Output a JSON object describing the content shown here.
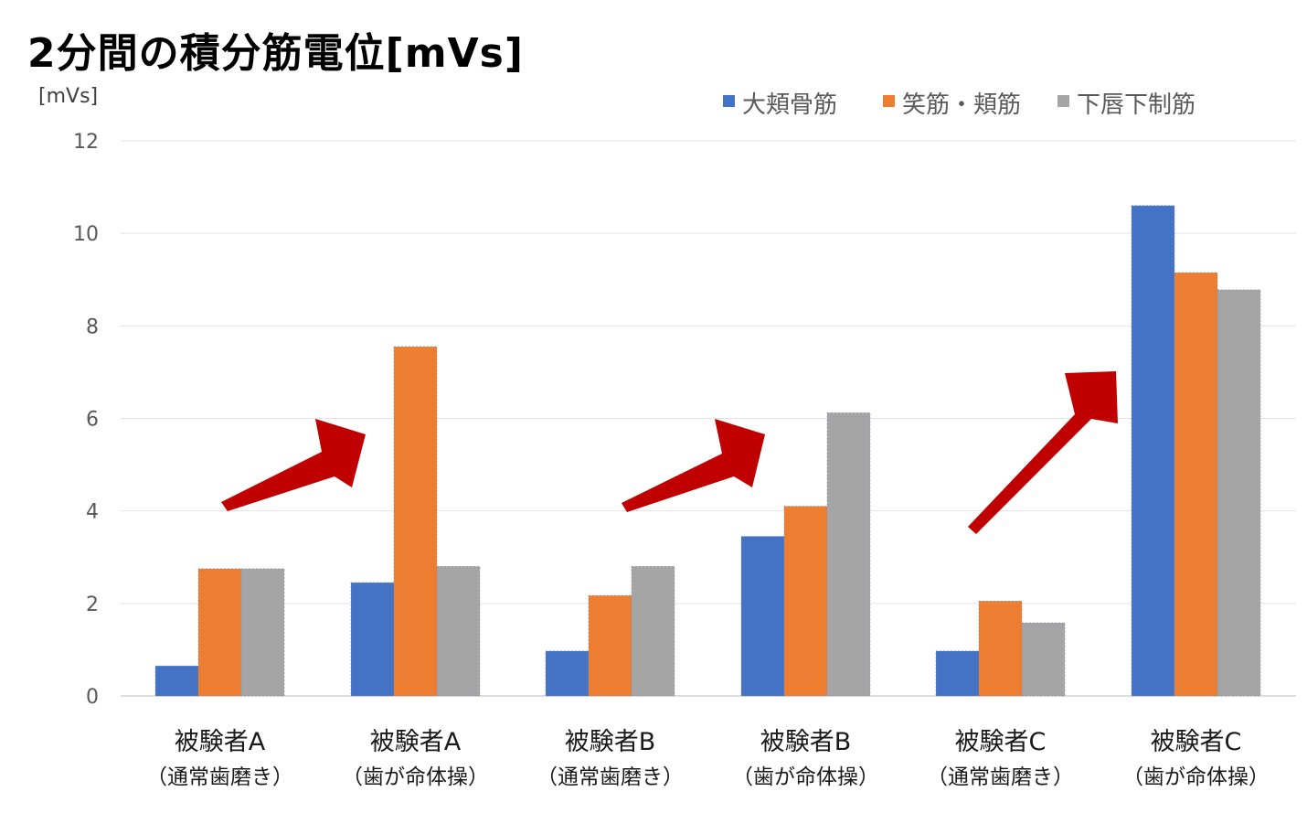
{
  "chart_data": {
    "type": "bar",
    "title": "2分間の積分筋電位[mVs]",
    "unit_label": "[mVs]",
    "ylim": [
      0,
      12
    ],
    "yticks": [
      0,
      2,
      4,
      6,
      8,
      10,
      12
    ],
    "grid": true,
    "legend_position": "top-right",
    "categories": [
      {
        "line1": "被験者A",
        "line2": "（通常歯磨き）"
      },
      {
        "line1": "被験者A",
        "line2": "（歯が命体操）"
      },
      {
        "line1": "被験者B",
        "line2": "（通常歯磨き）"
      },
      {
        "line1": "被験者B",
        "line2": "（歯が命体操）"
      },
      {
        "line1": "被験者C",
        "line2": "（通常歯磨き）"
      },
      {
        "line1": "被験者C",
        "line2": "（歯が命体操）"
      }
    ],
    "series": [
      {
        "name": "大頬骨筋",
        "color": "#4472C4",
        "values": [
          0.65,
          2.45,
          0.97,
          3.45,
          0.97,
          10.6
        ]
      },
      {
        "name": "笑筋・頬筋",
        "color": "#ED7D31",
        "values": [
          2.75,
          7.55,
          2.17,
          4.1,
          2.05,
          9.15
        ]
      },
      {
        "name": "下唇下制筋",
        "color": "#A5A5A5",
        "values": [
          2.75,
          2.8,
          2.8,
          6.12,
          1.58,
          8.78
        ]
      }
    ],
    "annotations": [
      {
        "type": "arrow",
        "color": "#C00000",
        "from_category": 0,
        "to_category": 1
      },
      {
        "type": "arrow",
        "color": "#C00000",
        "from_category": 2,
        "to_category": 3
      },
      {
        "type": "arrow",
        "color": "#C00000",
        "from_category": 4,
        "to_category": 5
      }
    ]
  }
}
